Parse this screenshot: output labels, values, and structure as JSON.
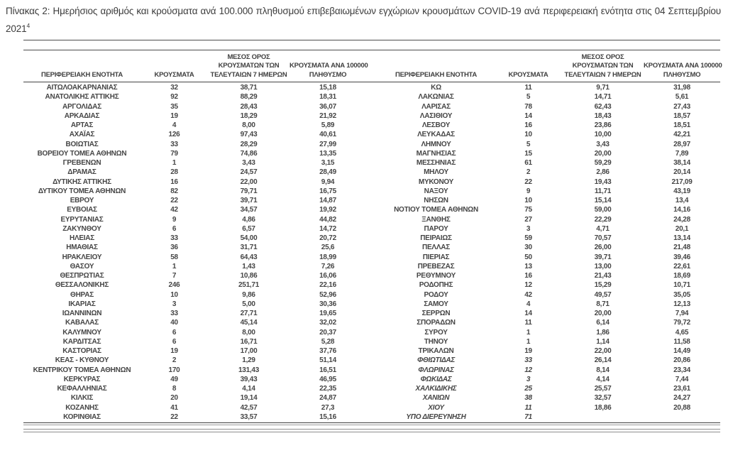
{
  "title": {
    "text": "Πίνακας 2:  Ημερήσιος αριθμός και κρούσματα ανά 100.000 πληθυσμού επιβεβαιωμένων εγχώριων κρουσμάτων COVID-19 ανά περιφερειακή ενότητα στις 04 Σεπτεμβρίου 2021",
    "footnote_marker": "4"
  },
  "table": {
    "headers": {
      "region": "ΠΕΡΙΦΕΡΕΙΑΚΗ ΕΝΟΤΗΤΑ",
      "cases": "ΚΡΟΥΣΜΑΤΑ",
      "avg7_lines": [
        "ΜΕΣΟΣ ΟΡΟΣ",
        "ΚΡΟΥΣΜΑΤΩΝ ΤΩΝ",
        "ΤΕΛΕΥΤΑΙΩΝ 7 ΗΜΕΡΩΝ"
      ],
      "per100k_lines": [
        "ΚΡΟΥΣΜΑΤΑ ΑΝΑ 100000",
        "ΠΛΗΘΥΣΜΟ"
      ]
    },
    "left_rows": [
      [
        "ΑΙΤΩΛΟΑΚΑΡΝΑΝΙΑΣ",
        "32",
        "38,71",
        "15,18"
      ],
      [
        "ΑΝΑΤΟΛΙΚΗΣ ΑΤΤΙΚΗΣ",
        "92",
        "88,29",
        "18,31"
      ],
      [
        "ΑΡΓΟΛΙΔΑΣ",
        "35",
        "28,43",
        "36,07"
      ],
      [
        "ΑΡΚΑΔΙΑΣ",
        "19",
        "18,29",
        "21,92"
      ],
      [
        "ΑΡΤΑΣ",
        "4",
        "8,00",
        "5,89"
      ],
      [
        "ΑΧΑΪΑΣ",
        "126",
        "97,43",
        "40,61"
      ],
      [
        "ΒΟΙΩΤΙΑΣ",
        "33",
        "28,29",
        "27,99"
      ],
      [
        "ΒΟΡΕΙΟΥ ΤΟΜΕΑ ΑΘΗΝΩΝ",
        "79",
        "74,86",
        "13,35"
      ],
      [
        "ΓΡΕΒΕΝΩΝ",
        "1",
        "3,43",
        "3,15"
      ],
      [
        "ΔΡΑΜΑΣ",
        "28",
        "24,57",
        "28,49"
      ],
      [
        "ΔΥΤΙΚΗΣ ΑΤΤΙΚΗΣ",
        "16",
        "22,00",
        "9,94"
      ],
      [
        "ΔΥΤΙΚΟΥ ΤΟΜΕΑ ΑΘΗΝΩΝ",
        "82",
        "79,71",
        "16,75"
      ],
      [
        "ΕΒΡΟΥ",
        "22",
        "39,71",
        "14,87"
      ],
      [
        "ΕΥΒΟΙΑΣ",
        "42",
        "34,57",
        "19,92"
      ],
      [
        "ΕΥΡΥΤΑΝΙΑΣ",
        "9",
        "4,86",
        "44,82"
      ],
      [
        "ΖΑΚΥΝΘΟΥ",
        "6",
        "6,57",
        "14,72"
      ],
      [
        "ΗΛΕΙΑΣ",
        "33",
        "54,00",
        "20,72"
      ],
      [
        "ΗΜΑΘΙΑΣ",
        "36",
        "31,71",
        "25,6"
      ],
      [
        "ΗΡΑΚΛΕΙΟΥ",
        "58",
        "64,43",
        "18,99"
      ],
      [
        "ΘΑΣΟΥ",
        "1",
        "1,43",
        "7,26"
      ],
      [
        "ΘΕΣΠΡΩΤΙΑΣ",
        "7",
        "10,86",
        "16,06"
      ],
      [
        "ΘΕΣΣΑΛΟΝΙΚΗΣ",
        "246",
        "251,71",
        "22,16"
      ],
      [
        "ΘΗΡΑΣ",
        "10",
        "9,86",
        "52,96"
      ],
      [
        "ΙΚΑΡΙΑΣ",
        "3",
        "5,00",
        "30,36"
      ],
      [
        "ΙΩΑΝΝΙΝΩΝ",
        "33",
        "27,71",
        "19,65"
      ],
      [
        "ΚΑΒΑΛΑΣ",
        "40",
        "45,14",
        "32,02"
      ],
      [
        "ΚΑΛΥΜΝΟΥ",
        "6",
        "8,00",
        "20,37"
      ],
      [
        "ΚΑΡΔΙΤΣΑΣ",
        "6",
        "16,71",
        "5,28"
      ],
      [
        "ΚΑΣΤΟΡΙΑΣ",
        "19",
        "17,00",
        "37,76"
      ],
      [
        "ΚΕΑΣ - ΚΥΘΝΟΥ",
        "2",
        "1,29",
        "51,14"
      ],
      [
        "ΚΕΝΤΡΙΚΟΥ ΤΟΜΕΑ ΑΘΗΝΩΝ",
        "170",
        "131,43",
        "16,51"
      ],
      [
        "ΚΕΡΚΥΡΑΣ",
        "49",
        "39,43",
        "46,95"
      ],
      [
        "ΚΕΦΑΛΛΗΝΙΑΣ",
        "8",
        "4,14",
        "22,35"
      ],
      [
        "ΚΙΛΚΙΣ",
        "20",
        "19,14",
        "24,87"
      ],
      [
        "ΚΟΖΑΝΗΣ",
        "41",
        "42,57",
        "27,3"
      ],
      [
        "ΚΟΡΙΝΘΙΑΣ",
        "22",
        "33,57",
        "15,16"
      ]
    ],
    "right_rows": [
      [
        "ΚΩ",
        "11",
        "9,71",
        "31,98"
      ],
      [
        "ΛΑΚΩΝΙΑΣ",
        "5",
        "14,71",
        "5,61"
      ],
      [
        "ΛΑΡΙΣΑΣ",
        "78",
        "62,43",
        "27,43"
      ],
      [
        "ΛΑΣΙΘΙΟΥ",
        "14",
        "18,43",
        "18,57"
      ],
      [
        "ΛΕΣΒΟΥ",
        "16",
        "23,86",
        "18,51"
      ],
      [
        "ΛΕΥΚΑΔΑΣ",
        "10",
        "10,00",
        "42,21"
      ],
      [
        "ΛΗΜΝΟΥ",
        "5",
        "3,43",
        "28,97"
      ],
      [
        "ΜΑΓΝΗΣΙΑΣ",
        "15",
        "20,00",
        "7,89"
      ],
      [
        "ΜΕΣΣΗΝΙΑΣ",
        "61",
        "59,29",
        "38,14"
      ],
      [
        "ΜΗΛΟΥ",
        "2",
        "2,86",
        "20,14"
      ],
      [
        "ΜΥΚΟΝΟΥ",
        "22",
        "19,43",
        "217,09"
      ],
      [
        "ΝΑΞΟΥ",
        "9",
        "11,71",
        "43,19"
      ],
      [
        "ΝΗΣΩΝ",
        "10",
        "15,14",
        "13,4"
      ],
      [
        "ΝΟΤΙΟΥ ΤΟΜΕΑ ΑΘΗΝΩΝ",
        "75",
        "59,00",
        "14,16"
      ],
      [
        "ΞΑΝΘΗΣ",
        "27",
        "22,29",
        "24,28"
      ],
      [
        "ΠΑΡΟΥ",
        "3",
        "4,71",
        "20,1"
      ],
      [
        "ΠΕΙΡΑΙΩΣ",
        "59",
        "70,57",
        "13,14"
      ],
      [
        "ΠΕΛΛΑΣ",
        "30",
        "26,00",
        "21,48"
      ],
      [
        "ΠΙΕΡΙΑΣ",
        "50",
        "39,71",
        "39,46"
      ],
      [
        "ΠΡΕΒΕΖΑΣ",
        "13",
        "13,00",
        "22,61"
      ],
      [
        "ΡΕΘΥΜΝΟΥ",
        "16",
        "21,43",
        "18,69"
      ],
      [
        "ΡΟΔΟΠΗΣ",
        "12",
        "15,29",
        "10,71"
      ],
      [
        "ΡΟΔΟΥ",
        "42",
        "49,57",
        "35,05"
      ],
      [
        "ΣΑΜΟΥ",
        "4",
        "8,71",
        "12,13"
      ],
      [
        "ΣΕΡΡΩΝ",
        "14",
        "20,00",
        "7,94"
      ],
      [
        "ΣΠΟΡΑΔΩΝ",
        "11",
        "6,14",
        "79,72"
      ],
      [
        "ΣΥΡΟΥ",
        "1",
        "1,86",
        "4,65"
      ],
      [
        "ΤΗΝΟΥ",
        "1",
        "1,14",
        "11,58"
      ],
      [
        "ΤΡΙΚΑΛΩΝ",
        "19",
        "22,00",
        "14,49"
      ],
      [
        "ΦΘΙΩΤΙΔΑΣ",
        "33",
        "26,14",
        "20,86"
      ],
      [
        "ΦΛΩΡΙΝΑΣ",
        "12",
        "8,14",
        "23,34"
      ],
      [
        "ΦΩΚΙΔΑΣ",
        "3",
        "4,14",
        "7,44"
      ],
      [
        "ΧΑΛΚΙΔΙΚΗΣ",
        "25",
        "25,57",
        "23,61"
      ],
      [
        "ΧΑΝΙΩΝ",
        "38",
        "32,57",
        "24,27"
      ],
      [
        "ΧΙΟΥ",
        "11",
        "18,86",
        "20,88"
      ],
      [
        "ΥΠΟ ΔΙΕΡΕΥΝΗΣΗ",
        "71",
        "",
        ""
      ]
    ],
    "right_rows_emphasis_indices": [
      29,
      30,
      31,
      32,
      33,
      34,
      35
    ]
  }
}
